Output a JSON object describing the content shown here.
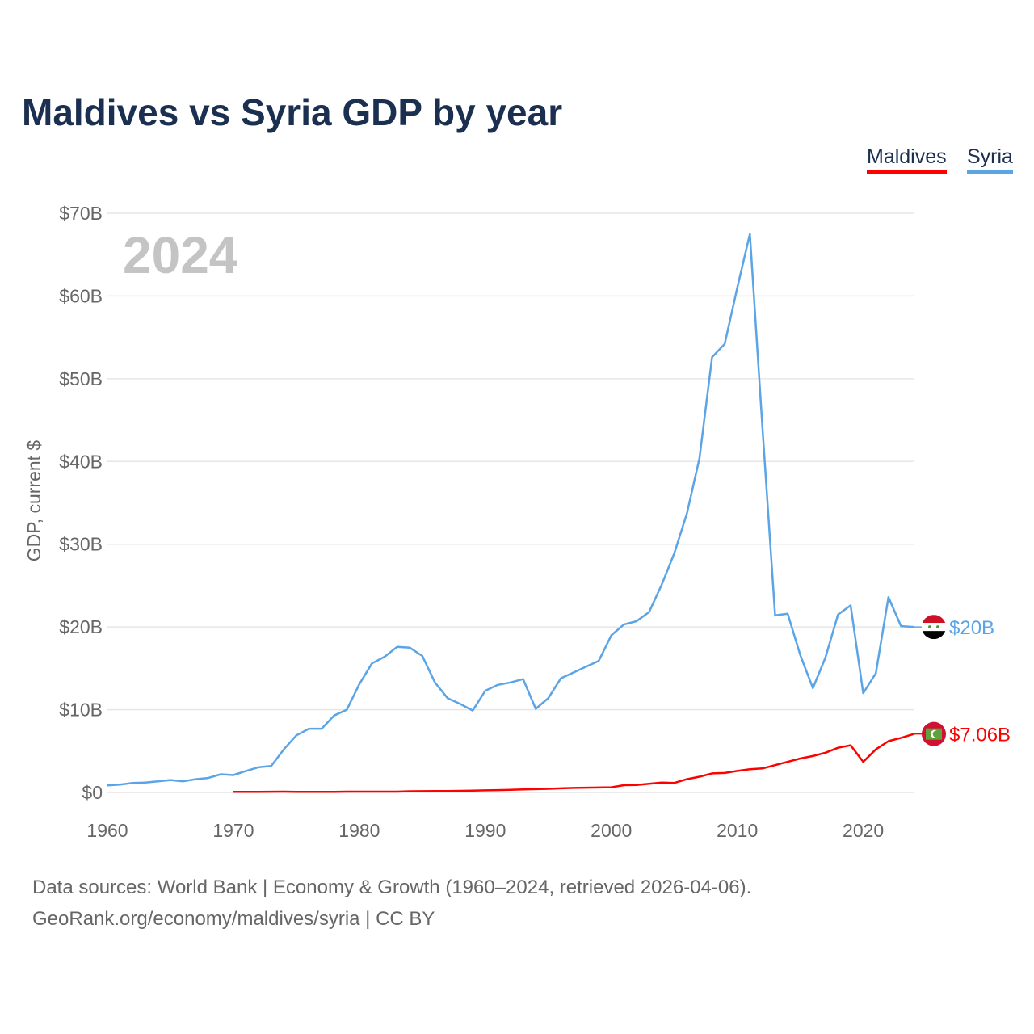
{
  "title": "Maldives vs Syria GDP by year",
  "legend": {
    "maldives": "Maldives",
    "syria": "Syria"
  },
  "footer": {
    "line1": "Data sources: World Bank | Economy & Growth (1960–2024, retrieved 2026-04-06).",
    "line2": "GeoRank.org/economy/maldives/syria | CC BY"
  },
  "chart_data": {
    "type": "line",
    "title": "Maldives vs Syria GDP by year",
    "ylabel": "GDP, current $",
    "xlabel": "",
    "year_label": "2024",
    "xlim": [
      1960,
      2024
    ],
    "ylim": [
      0,
      70
    ],
    "x_ticks": [
      1960,
      1970,
      1980,
      1990,
      2000,
      2010,
      2020
    ],
    "y_ticks": [
      {
        "v": 0,
        "label": "$0"
      },
      {
        "v": 10,
        "label": "$10B"
      },
      {
        "v": 20,
        "label": "$20B"
      },
      {
        "v": 30,
        "label": "$30B"
      },
      {
        "v": 40,
        "label": "$40B"
      },
      {
        "v": 50,
        "label": "$50B"
      },
      {
        "v": 60,
        "label": "$60B"
      },
      {
        "v": 70,
        "label": "$70B"
      }
    ],
    "grid": true,
    "legend_position": "top-right",
    "series": [
      {
        "name": "Syria",
        "color": "#5ba4e5",
        "end_label": "$20B",
        "start": 1960,
        "values": [
          0.86,
          0.95,
          1.15,
          1.2,
          1.35,
          1.5,
          1.35,
          1.6,
          1.75,
          2.2,
          2.1,
          2.6,
          3.05,
          3.2,
          5.2,
          6.9,
          7.7,
          7.7,
          9.3,
          10.0,
          13.1,
          15.6,
          16.4,
          17.6,
          17.5,
          16.5,
          13.3,
          11.4,
          10.7,
          9.9,
          12.3,
          13.0,
          13.3,
          13.7,
          10.1,
          11.4,
          13.8,
          14.5,
          15.2,
          15.9,
          19.0,
          20.3,
          20.7,
          21.8,
          25.1,
          28.9,
          33.7,
          40.4,
          52.6,
          54.2,
          61.0,
          67.5,
          44.0,
          21.4,
          21.6,
          16.6,
          12.6,
          16.3,
          21.5,
          22.6,
          12.0,
          14.4,
          23.6,
          20.1,
          20.0
        ]
      },
      {
        "name": "Maldives",
        "color": "#ff0000",
        "end_label": "$7.06B",
        "start": 1970,
        "values": [
          0.08,
          0.08,
          0.08,
          0.09,
          0.1,
          0.08,
          0.08,
          0.08,
          0.08,
          0.1,
          0.1,
          0.1,
          0.1,
          0.1,
          0.15,
          0.16,
          0.18,
          0.18,
          0.2,
          0.22,
          0.25,
          0.28,
          0.32,
          0.36,
          0.4,
          0.44,
          0.5,
          0.55,
          0.58,
          0.6,
          0.62,
          0.88,
          0.9,
          1.05,
          1.2,
          1.15,
          1.6,
          1.9,
          2.3,
          2.35,
          2.6,
          2.8,
          2.9,
          3.3,
          3.7,
          4.1,
          4.4,
          4.8,
          5.4,
          5.7,
          3.7,
          5.2,
          6.2,
          6.6,
          7.06
        ]
      }
    ]
  }
}
